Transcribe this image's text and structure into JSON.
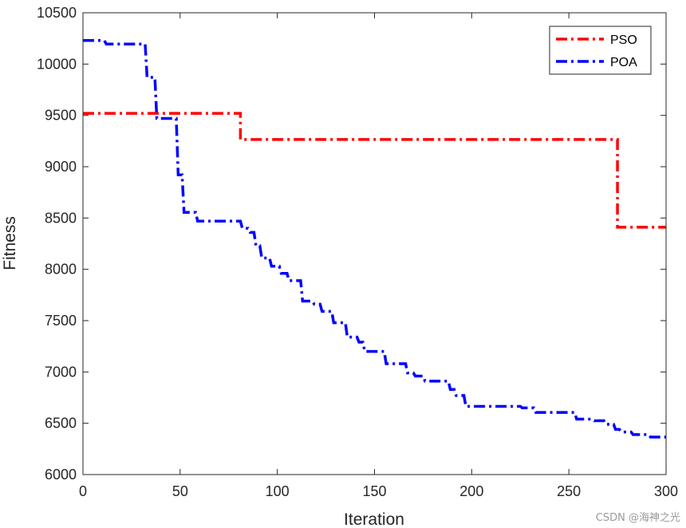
{
  "chart_data": {
    "type": "line",
    "title": "",
    "xlabel": "Iteration",
    "ylabel": "Fitness",
    "xlim": [
      0,
      300
    ],
    "ylim": [
      6000,
      10500
    ],
    "xticks": [
      0,
      50,
      100,
      150,
      200,
      250,
      300
    ],
    "yticks": [
      6000,
      6500,
      7000,
      7500,
      8000,
      8500,
      9000,
      9500,
      10000,
      10500
    ],
    "grid": false,
    "legend_position": "top-right",
    "series": [
      {
        "name": "PSO",
        "color": "#ff0000",
        "line_style": "dash-dot",
        "x": [
          0,
          81,
          81,
          275,
          275,
          300
        ],
        "y": [
          9520,
          9520,
          9265,
          9265,
          8410,
          8410
        ]
      },
      {
        "name": "POA",
        "color": "#0000ff",
        "line_style": "dash-dot",
        "x": [
          0,
          11,
          12,
          32,
          33,
          37,
          38,
          48,
          49,
          51,
          52,
          58,
          59,
          81,
          82,
          85,
          86,
          88,
          89,
          91,
          92,
          96,
          97,
          101,
          102,
          105,
          106,
          112,
          113,
          118,
          119,
          122,
          123,
          128,
          129,
          135,
          136,
          141,
          142,
          144,
          145,
          155,
          156,
          166,
          167,
          170,
          171,
          175,
          176,
          188,
          189,
          191,
          192,
          196,
          197,
          225,
          226,
          232,
          233,
          253,
          254,
          262,
          263,
          268,
          269,
          273,
          274,
          276,
          277,
          282,
          283,
          291,
          292,
          300
        ],
        "y": [
          10230,
          10230,
          10195,
          10195,
          9870,
          9870,
          9470,
          9470,
          8920,
          8920,
          8555,
          8555,
          8470,
          8470,
          8400,
          8400,
          8360,
          8360,
          8230,
          8230,
          8110,
          8110,
          8030,
          8030,
          7960,
          7960,
          7890,
          7890,
          7690,
          7690,
          7660,
          7660,
          7590,
          7590,
          7480,
          7480,
          7340,
          7340,
          7290,
          7290,
          7200,
          7200,
          7080,
          7080,
          6990,
          6990,
          6960,
          6960,
          6910,
          6910,
          6830,
          6830,
          6770,
          6770,
          6665,
          6665,
          6650,
          6650,
          6605,
          6605,
          6540,
          6540,
          6525,
          6525,
          6490,
          6490,
          6440,
          6440,
          6415,
          6415,
          6390,
          6390,
          6365,
          6365
        ]
      }
    ]
  },
  "watermark": "CSDN @海神之光"
}
